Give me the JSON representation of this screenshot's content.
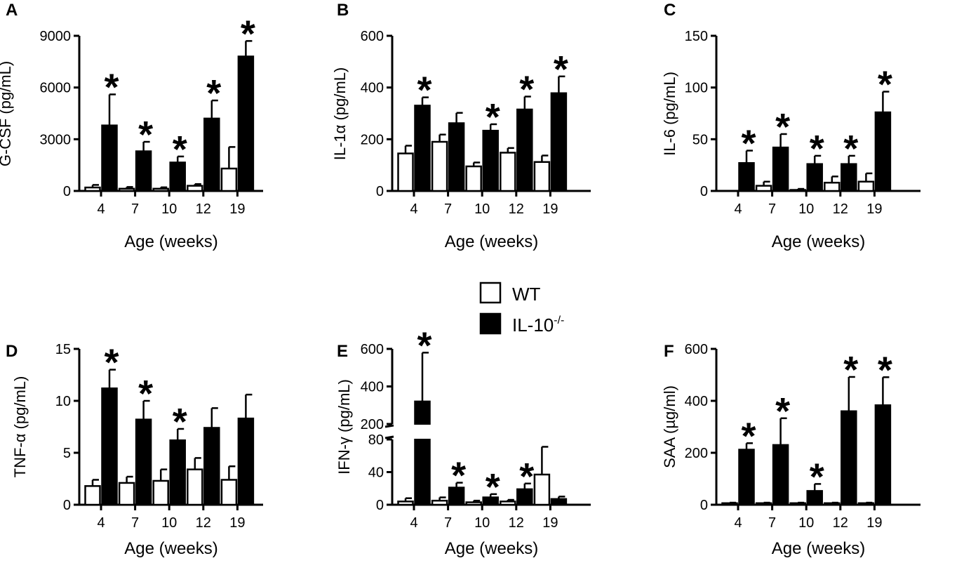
{
  "legend": {
    "items": [
      {
        "label": "WT",
        "fill": "#ffffff"
      },
      {
        "label": "IL-10",
        "sup": "-/-",
        "fill": "#000000"
      }
    ]
  },
  "colors": {
    "wt": "#ffffff",
    "ko": "#000000",
    "axis": "#000000"
  },
  "chart_data": [
    {
      "panel": "A",
      "type": "bar",
      "ylabel": "G-CSF (pg/mL)",
      "xlabel": "Age (weeks)",
      "categories": [
        "4",
        "7",
        "10",
        "12",
        "19"
      ],
      "ylim": [
        0,
        9000
      ],
      "yticks": [
        "0",
        "3000",
        "6000",
        "9000"
      ],
      "series": [
        {
          "name": "WT",
          "values": [
            200,
            130,
            130,
            300,
            1300
          ],
          "errors": [
            150,
            100,
            80,
            100,
            1250
          ]
        },
        {
          "name": "IL-10-/-",
          "values": [
            3800,
            2300,
            1650,
            4200,
            7800
          ],
          "errors": [
            1800,
            550,
            350,
            1050,
            900
          ]
        }
      ],
      "significant": [
        true,
        true,
        true,
        true,
        true
      ]
    },
    {
      "panel": "B",
      "type": "bar",
      "ylabel": "IL-1α (pg/mL)",
      "xlabel": "Age (weeks)",
      "categories": [
        "4",
        "7",
        "10",
        "12",
        "19"
      ],
      "ylim": [
        0,
        600
      ],
      "yticks": [
        "0",
        "200",
        "400",
        "600"
      ],
      "series": [
        {
          "name": "WT",
          "values": [
            145,
            190,
            95,
            148,
            112
          ],
          "errors": [
            30,
            28,
            15,
            18,
            25
          ]
        },
        {
          "name": "IL-10-/-",
          "values": [
            330,
            262,
            233,
            315,
            378
          ],
          "errors": [
            32,
            40,
            25,
            50,
            65
          ]
        }
      ],
      "significant": [
        true,
        false,
        true,
        true,
        true
      ]
    },
    {
      "panel": "C",
      "type": "bar",
      "ylabel": "IL-6 (pg/mL)",
      "xlabel": "Age (weeks)",
      "categories": [
        "4",
        "7",
        "10",
        "12",
        "19"
      ],
      "ylim": [
        0,
        150
      ],
      "yticks": [
        "0",
        "50",
        "100",
        "150"
      ],
      "series": [
        {
          "name": "WT",
          "values": [
            0,
            5,
            1,
            8,
            9
          ],
          "errors": [
            0,
            4,
            1,
            6,
            8
          ]
        },
        {
          "name": "IL-10-/-",
          "values": [
            27,
            42,
            26,
            26,
            76
          ],
          "errors": [
            12,
            13,
            8,
            8,
            20
          ]
        }
      ],
      "significant": [
        true,
        true,
        true,
        true,
        true
      ]
    },
    {
      "panel": "D",
      "type": "bar",
      "ylabel": "TNF-α (pg/mL)",
      "xlabel": "Age (weeks)",
      "categories": [
        "4",
        "7",
        "10",
        "12",
        "19"
      ],
      "ylim": [
        0,
        15
      ],
      "yticks": [
        "0",
        "5",
        "10",
        "15"
      ],
      "series": [
        {
          "name": "WT",
          "values": [
            1.8,
            2.1,
            2.3,
            3.4,
            2.4
          ],
          "errors": [
            0.6,
            0.6,
            1.1,
            1.1,
            1.3
          ]
        },
        {
          "name": "IL-10-/-",
          "values": [
            11.2,
            8.2,
            6.2,
            7.4,
            8.3
          ],
          "errors": [
            1.8,
            1.8,
            1.1,
            1.9,
            2.3
          ]
        }
      ],
      "significant": [
        true,
        true,
        true,
        false,
        false
      ]
    },
    {
      "panel": "E",
      "type": "bar",
      "ylabel": "IFN-γ (pg/mL)",
      "xlabel": "Age (weeks)",
      "categories": [
        "4",
        "7",
        "10",
        "12",
        "19"
      ],
      "broken_axis": {
        "lower": [
          0,
          80
        ],
        "upper": [
          200,
          600
        ]
      },
      "yticks": [
        "0",
        "40",
        "80",
        "200",
        "400",
        "600"
      ],
      "series": [
        {
          "name": "WT",
          "values": [
            4,
            5,
            3,
            4,
            37
          ],
          "errors": [
            4,
            4,
            2,
            2,
            34
          ]
        },
        {
          "name": "IL-10-/-",
          "values": [
            320,
            21,
            9,
            19,
            7
          ],
          "errors": [
            260,
            6,
            4,
            7,
            3
          ]
        }
      ],
      "significant": [
        true,
        true,
        true,
        true,
        false
      ]
    },
    {
      "panel": "F",
      "type": "bar",
      "ylabel": "SAA (µg/ml)",
      "xlabel": "Age (weeks)",
      "categories": [
        "4",
        "7",
        "10",
        "12",
        "19"
      ],
      "ylim": [
        0,
        600
      ],
      "yticks": [
        "0",
        "200",
        "400",
        "600"
      ],
      "series": [
        {
          "name": "WT",
          "values": [
            6,
            6,
            6,
            6,
            6
          ],
          "errors": [
            2,
            2,
            2,
            2,
            2
          ]
        },
        {
          "name": "IL-10-/-",
          "values": [
            212,
            230,
            53,
            360,
            383
          ],
          "errors": [
            25,
            103,
            27,
            132,
            108
          ]
        }
      ],
      "significant": [
        true,
        true,
        true,
        true,
        true
      ]
    }
  ]
}
